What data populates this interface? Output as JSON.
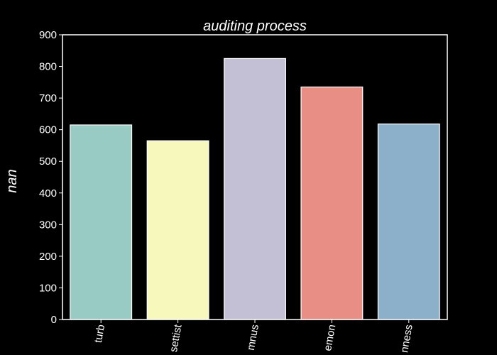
{
  "chart_data": {
    "type": "bar",
    "title": "auditing process",
    "xlabel": "",
    "ylabel": "nan",
    "categories": [
      "turb",
      "settist",
      "mnus",
      "emon",
      "nness"
    ],
    "values": [
      615,
      565,
      825,
      735,
      618
    ],
    "colors": [
      "#98cbc4",
      "#f6f8bc",
      "#c3c0d6",
      "#e88e84",
      "#8db0ca"
    ],
    "ylim": [
      0,
      900
    ],
    "yticks": [
      0,
      100,
      200,
      300,
      400,
      500,
      600,
      700,
      800,
      900
    ],
    "grid": false,
    "legend": null,
    "background": "#000000",
    "foreground": "#ffffff"
  }
}
